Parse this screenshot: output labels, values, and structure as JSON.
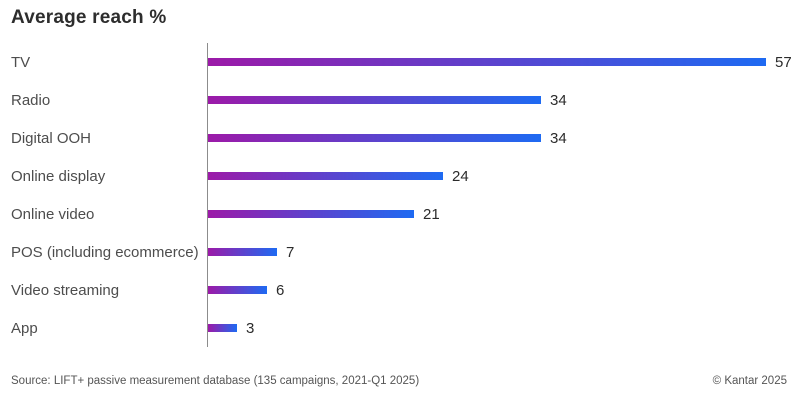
{
  "page": {
    "title": "Average reach %",
    "source_note": "Source: LIFT+ passive measurement database (135 campaigns, 2021-Q1 2025)",
    "copyright": "© Kantar 2025"
  },
  "chart_data": {
    "type": "bar",
    "orientation": "horizontal",
    "title": "Average reach %",
    "categories": [
      "TV",
      "Radio",
      "Digital OOH",
      "Online display",
      "Online video",
      "POS (including ecommerce)",
      "Video streaming",
      "App"
    ],
    "values": [
      57,
      34,
      34,
      24,
      21,
      7,
      6,
      3
    ],
    "value_labels_shown": true,
    "xlim": [
      0,
      57
    ],
    "grid": false,
    "legend": false,
    "bar_gradient_start": "#9c1aa8",
    "bar_gradient_end": "#1e6af2",
    "axis_color": "#8c8c8c",
    "label_color": "#4d4d4d",
    "value_color": "#2b2b2b"
  }
}
